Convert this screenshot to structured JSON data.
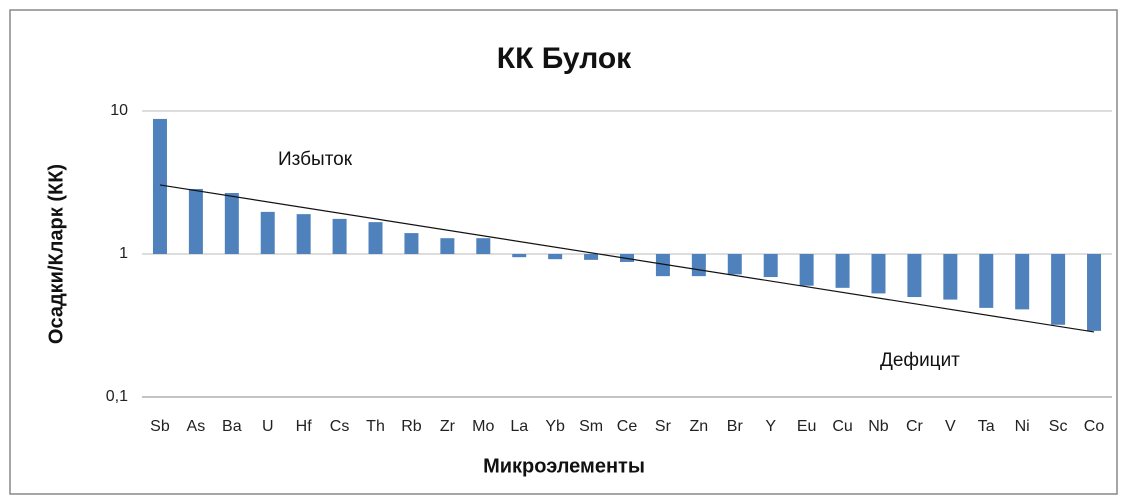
{
  "chart_data": {
    "type": "bar",
    "title": "КК Булок",
    "x_label": "Микроэлементы",
    "y_label": "Осадки/Кларк (КК)",
    "categories": [
      "Sb",
      "As",
      "Ba",
      "U",
      "Hf",
      "Cs",
      "Th",
      "Rb",
      "Zr",
      "Mo",
      "La",
      "Yb",
      "Sm",
      "Ce",
      "Sr",
      "Zn",
      "Br",
      "Y",
      "Eu",
      "Cu",
      "Nb",
      "Cr",
      "V",
      "Ta",
      "Ni",
      "Sc",
      "Co"
    ],
    "values": [
      8.8,
      2.85,
      2.67,
      1.97,
      1.9,
      1.76,
      1.67,
      1.4,
      1.29,
      1.29,
      0.95,
      0.92,
      0.91,
      0.88,
      0.7,
      0.7,
      0.72,
      0.69,
      0.6,
      0.58,
      0.53,
      0.5,
      0.48,
      0.42,
      0.41,
      0.32,
      0.29
    ],
    "color": "#4f81bd",
    "log_scale": true,
    "ylim": [
      0.1,
      10
    ],
    "yticks": [
      {
        "value": 0.1,
        "label": "0,1"
      },
      1,
      10
    ],
    "grid": true,
    "trend_line": [
      3.04,
      0.285
    ],
    "annotations": [
      "Избыток",
      "Дефицит"
    ]
  }
}
